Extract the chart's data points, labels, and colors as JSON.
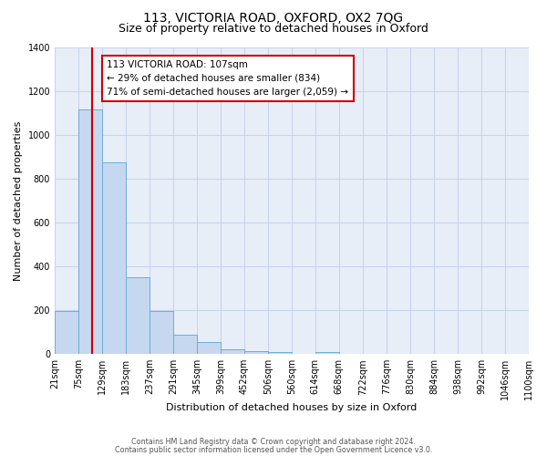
{
  "title": "113, VICTORIA ROAD, OXFORD, OX2 7QG",
  "subtitle": "Size of property relative to detached houses in Oxford",
  "xlabel": "Distribution of detached houses by size in Oxford",
  "ylabel": "Number of detached properties",
  "bin_edges": [
    21,
    75,
    129,
    183,
    237,
    291,
    345,
    399,
    452,
    506,
    560,
    614,
    668,
    722,
    776,
    830,
    884,
    938,
    992,
    1046,
    1100
  ],
  "counts": [
    195,
    1115,
    875,
    350,
    195,
    90,
    55,
    22,
    15,
    10,
    0,
    8,
    0,
    0,
    0,
    0,
    0,
    0,
    0,
    0
  ],
  "bar_color": "#c5d8f0",
  "bar_edge_color": "#6aaed6",
  "vline_x": 107,
  "vline_color": "#cc0000",
  "annotation_line1": "113 VICTORIA ROAD: 107sqm",
  "annotation_line2": "← 29% of detached houses are smaller (834)",
  "annotation_line3": "71% of semi-detached houses are larger (2,059) →",
  "annotation_box_color": "#ffffff",
  "annotation_box_edge": "#cc0000",
  "ylim": [
    0,
    1400
  ],
  "yticks": [
    0,
    200,
    400,
    600,
    800,
    1000,
    1200,
    1400
  ],
  "tick_labels": [
    "21sqm",
    "75sqm",
    "129sqm",
    "183sqm",
    "237sqm",
    "291sqm",
    "345sqm",
    "399sqm",
    "452sqm",
    "506sqm",
    "560sqm",
    "614sqm",
    "668sqm",
    "722sqm",
    "776sqm",
    "830sqm",
    "884sqm",
    "938sqm",
    "992sqm",
    "1046sqm",
    "1100sqm"
  ],
  "footer_line1": "Contains HM Land Registry data © Crown copyright and database right 2024.",
  "footer_line2": "Contains public sector information licensed under the Open Government Licence v3.0.",
  "fig_bg_color": "#ffffff",
  "axes_bg_color": "#e8eef8",
  "grid_color": "#c8d4ea",
  "title_fontsize": 10,
  "subtitle_fontsize": 9,
  "ylabel_fontsize": 8,
  "xlabel_fontsize": 8
}
